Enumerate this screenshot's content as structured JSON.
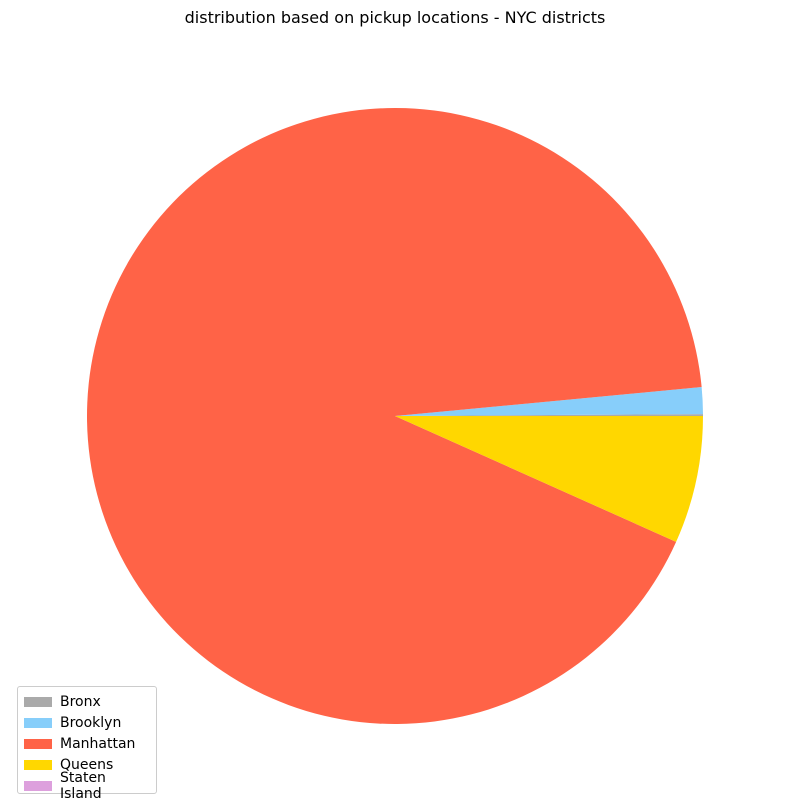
{
  "chart_data": {
    "type": "pie",
    "title": "distribution based on pickup locations - NYC districts",
    "categories": [
      "Bronx",
      "Brooklyn",
      "Manhattan",
      "Queens",
      "Staten Island"
    ],
    "values": [
      0.1,
      1.4,
      91.8,
      6.7,
      0.0
    ],
    "colors": [
      "#aaaaaa",
      "#87cefa",
      "#ff6347",
      "#ffd700",
      "#dda0dd"
    ],
    "start_angle": 0,
    "direction": "counterclockwise",
    "legend_position": "lower-left"
  }
}
